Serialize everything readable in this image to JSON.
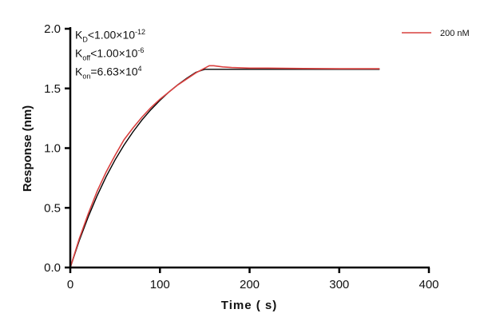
{
  "chart_data": {
    "type": "line",
    "xlabel": "Time ( s)",
    "ylabel": "Response (nm)",
    "xlim": [
      0,
      400
    ],
    "ylim": [
      0,
      2.0
    ],
    "xticks": [
      "0",
      "100",
      "200",
      "300",
      "400"
    ],
    "yticks": [
      "0.0",
      "0.5",
      "1.0",
      "1.5",
      "2.0"
    ],
    "grid": false,
    "legend_position": "top-right",
    "annotations": {
      "kd": {
        "label": "K",
        "sub": "D",
        "text": "<1.00×10",
        "exp": "-12"
      },
      "koff": {
        "label": "K",
        "sub": "off",
        "text": "<1.00×10",
        "exp": "-6"
      },
      "kon": {
        "label": "K",
        "sub": "on",
        "text": "=6.63×10",
        "exp": "4"
      }
    },
    "series": [
      {
        "name": "200 nM",
        "color": "#d9403f",
        "x": [
          0,
          10,
          20,
          30,
          40,
          50,
          60,
          70,
          80,
          90,
          100,
          110,
          120,
          130,
          140,
          150,
          155,
          160,
          170,
          180,
          200,
          220,
          240,
          260,
          280,
          300,
          320,
          345
        ],
        "y": [
          0,
          0.24,
          0.45,
          0.64,
          0.8,
          0.94,
          1.07,
          1.17,
          1.26,
          1.34,
          1.41,
          1.47,
          1.53,
          1.58,
          1.63,
          1.67,
          1.69,
          1.69,
          1.68,
          1.675,
          1.67,
          1.67,
          1.668,
          1.667,
          1.666,
          1.665,
          1.665,
          1.665
        ]
      },
      {
        "role": "fit",
        "color": "#000000",
        "x": [
          0,
          10,
          20,
          30,
          40,
          50,
          60,
          70,
          80,
          90,
          100,
          110,
          120,
          130,
          140,
          150,
          345
        ],
        "y": [
          0,
          0.225,
          0.425,
          0.603,
          0.761,
          0.902,
          1.026,
          1.137,
          1.236,
          1.323,
          1.401,
          1.47,
          1.532,
          1.586,
          1.635,
          1.66,
          1.66
        ]
      }
    ]
  }
}
